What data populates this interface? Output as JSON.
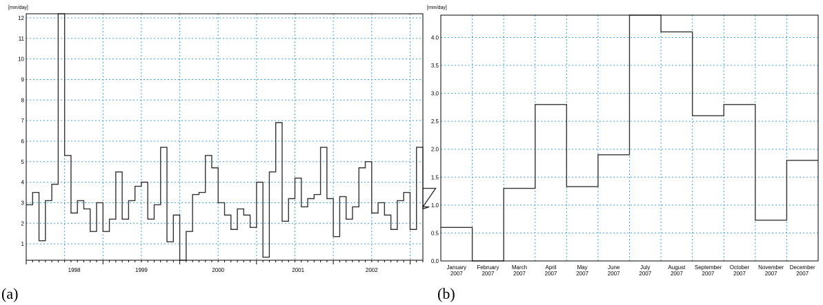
{
  "panels": [
    {
      "label": "(a)"
    },
    {
      "label": "(b)"
    }
  ],
  "chart_data": [
    {
      "type": "line",
      "step": true,
      "ylabel": "[mm/day]",
      "xlabel": "",
      "ylim": [
        0.2,
        12.2
      ],
      "yticks": [
        1,
        2,
        3,
        4,
        5,
        6,
        7,
        8,
        9,
        10,
        11,
        12
      ],
      "x_range_months": [
        0,
        62
      ],
      "year_labels": [
        {
          "label": "1998",
          "month": 7.5
        },
        {
          "label": "1999",
          "month": 18
        },
        {
          "label": "2000",
          "month": 30
        },
        {
          "label": "2001",
          "month": 42.5
        },
        {
          "label": "2002",
          "month": 54
        }
      ],
      "grid": true,
      "series": [
        {
          "values": [
            2.9,
            3.5,
            1.15,
            3.1,
            3.9,
            12.2,
            5.3,
            2.5,
            3.1,
            2.7,
            1.6,
            3.0,
            1.6,
            2.2,
            4.5,
            2.2,
            3.1,
            3.8,
            4.0,
            2.2,
            2.9,
            5.7,
            1.1,
            2.4,
            0.2,
            1.6,
            3.4,
            3.5,
            5.3,
            4.7,
            3.0,
            2.4,
            1.7,
            2.7,
            2.4,
            1.8,
            4.0,
            0.35,
            4.5,
            6.9,
            2.1,
            3.2,
            4.2,
            2.8,
            3.2,
            3.4,
            5.7,
            3.2,
            1.35,
            3.3,
            2.2,
            2.8,
            4.7,
            5.0,
            2.5,
            3.0,
            2.4,
            1.7,
            3.1,
            3.5,
            1.7,
            5.7,
            2.7,
            2.8,
            3.7
          ]
        }
      ]
    },
    {
      "type": "line",
      "step": true,
      "ylabel": "[mm/day]",
      "xlabel": "",
      "ylim": [
        0,
        4.4
      ],
      "yticks": [
        "0.0",
        "0.5",
        "1.0",
        "1.5",
        "2.0",
        "2.5",
        "3.0",
        "3.5",
        "4.0"
      ],
      "categories": [
        [
          "January",
          "2007"
        ],
        [
          "February",
          "2007"
        ],
        [
          "March",
          "2007"
        ],
        [
          "April",
          "2007"
        ],
        [
          "May",
          "2007"
        ],
        [
          "June",
          "2007"
        ],
        [
          "July",
          "2007"
        ],
        [
          "August",
          "2007"
        ],
        [
          "September",
          "2007"
        ],
        [
          "October",
          "2007"
        ],
        [
          "November",
          "2007"
        ],
        [
          "December",
          "2007"
        ]
      ],
      "grid": true,
      "series": [
        {
          "values": [
            0.6,
            0.0,
            1.3,
            2.8,
            1.33,
            1.9,
            4.4,
            4.1,
            2.6,
            2.8,
            0.73,
            1.8
          ]
        }
      ]
    }
  ]
}
